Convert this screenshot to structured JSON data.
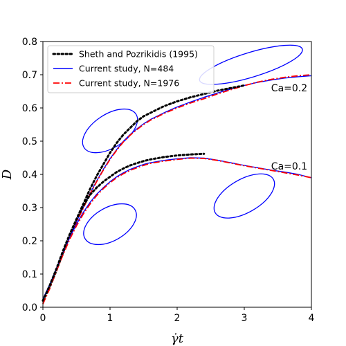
{
  "chart_data": {
    "type": "line",
    "xlabel": "γ̇t",
    "ylabel": "D",
    "xlim": [
      0,
      4
    ],
    "ylim": [
      0,
      0.8
    ],
    "xticks": [
      "0",
      "1",
      "2",
      "3",
      "4"
    ],
    "yticks": [
      "0.0",
      "0.1",
      "0.2",
      "0.3",
      "0.4",
      "0.5",
      "0.6",
      "0.7",
      "0.8"
    ],
    "grid": false,
    "legend_position": "top-left",
    "legend": [
      {
        "name": "Sheth and Pozrikidis (1995)",
        "style": "dotted",
        "color": "#000000"
      },
      {
        "name": "Current study, N=484",
        "style": "solid",
        "color": "#0000ff"
      },
      {
        "name": "Current study, N=1976",
        "style": "dashdot",
        "color": "#ff0000"
      }
    ],
    "annotations": [
      {
        "text": "Ca=0.2",
        "x": 3.4,
        "y": 0.66
      },
      {
        "text": "Ca=0.1",
        "x": 3.4,
        "y": 0.425
      }
    ],
    "groups": [
      {
        "ca": "Ca=0.2",
        "series": [
          {
            "ref": 0,
            "x": [
              0,
              0.1,
              0.2,
              0.3,
              0.4,
              0.5,
              0.6,
              0.7,
              0.8,
              0.9,
              1.0,
              1.1,
              1.2,
              1.3,
              1.4,
              1.5,
              1.6,
              1.8,
              2.0,
              2.2,
              2.4,
              2.6,
              2.8,
              3.0
            ],
            "y": [
              0.02,
              0.06,
              0.11,
              0.165,
              0.215,
              0.265,
              0.31,
              0.355,
              0.395,
              0.43,
              0.465,
              0.495,
              0.52,
              0.54,
              0.56,
              0.575,
              0.585,
              0.605,
              0.62,
              0.632,
              0.642,
              0.652,
              0.66,
              0.668
            ]
          },
          {
            "ref": 1,
            "x": [
              0,
              0.1,
              0.2,
              0.3,
              0.4,
              0.5,
              0.6,
              0.7,
              0.8,
              0.9,
              1.0,
              1.1,
              1.2,
              1.3,
              1.4,
              1.5,
              1.6,
              1.8,
              2.0,
              2.2,
              2.4,
              2.6,
              2.8,
              3.0,
              3.2,
              3.4,
              3.6,
              3.8,
              4.0
            ],
            "y": [
              0.025,
              0.065,
              0.115,
              0.165,
              0.212,
              0.258,
              0.3,
              0.342,
              0.38,
              0.415,
              0.447,
              0.475,
              0.5,
              0.52,
              0.537,
              0.552,
              0.565,
              0.585,
              0.603,
              0.618,
              0.632,
              0.645,
              0.657,
              0.668,
              0.677,
              0.684,
              0.69,
              0.694,
              0.697
            ]
          },
          {
            "ref": 2,
            "x": [
              0,
              0.1,
              0.2,
              0.3,
              0.4,
              0.5,
              0.6,
              0.7,
              0.8,
              0.9,
              1.0,
              1.1,
              1.2,
              1.3,
              1.4,
              1.5,
              1.6,
              1.8,
              2.0,
              2.2,
              2.4,
              2.6,
              2.8,
              3.0,
              3.2,
              3.4,
              3.6,
              3.8,
              4.0
            ],
            "y": [
              0.01,
              0.055,
              0.108,
              0.16,
              0.208,
              0.255,
              0.298,
              0.34,
              0.378,
              0.413,
              0.445,
              0.473,
              0.498,
              0.518,
              0.535,
              0.55,
              0.563,
              0.583,
              0.6,
              0.615,
              0.628,
              0.642,
              0.655,
              0.667,
              0.678,
              0.686,
              0.692,
              0.697,
              0.7
            ]
          }
        ]
      },
      {
        "ca": "Ca=0.1",
        "series": [
          {
            "ref": 0,
            "x": [
              0,
              0.1,
              0.2,
              0.3,
              0.4,
              0.5,
              0.6,
              0.7,
              0.8,
              0.9,
              1.0,
              1.1,
              1.2,
              1.3,
              1.4,
              1.5,
              1.6,
              1.8,
              2.0,
              2.2,
              2.4
            ],
            "y": [
              0.02,
              0.065,
              0.115,
              0.17,
              0.22,
              0.265,
              0.305,
              0.338,
              0.36,
              0.378,
              0.393,
              0.407,
              0.418,
              0.427,
              0.434,
              0.44,
              0.445,
              0.452,
              0.457,
              0.46,
              0.462
            ]
          },
          {
            "ref": 1,
            "x": [
              0,
              0.1,
              0.2,
              0.3,
              0.4,
              0.5,
              0.6,
              0.7,
              0.8,
              0.9,
              1.0,
              1.1,
              1.2,
              1.3,
              1.4,
              1.5,
              1.6,
              1.8,
              2.0,
              2.2,
              2.4,
              2.6,
              2.8,
              3.0,
              3.2,
              3.4,
              3.6,
              3.8,
              4.0
            ],
            "y": [
              0.025,
              0.068,
              0.115,
              0.165,
              0.21,
              0.25,
              0.285,
              0.315,
              0.34,
              0.36,
              0.378,
              0.393,
              0.405,
              0.415,
              0.423,
              0.43,
              0.435,
              0.442,
              0.447,
              0.45,
              0.449,
              0.443,
              0.435,
              0.427,
              0.42,
              0.413,
              0.407,
              0.4,
              0.39
            ]
          },
          {
            "ref": 2,
            "x": [
              0,
              0.1,
              0.2,
              0.3,
              0.4,
              0.5,
              0.6,
              0.7,
              0.8,
              0.9,
              1.0,
              1.1,
              1.2,
              1.3,
              1.4,
              1.5,
              1.6,
              1.8,
              2.0,
              2.2,
              2.4,
              2.6,
              2.8,
              3.0,
              3.2,
              3.4,
              3.6,
              3.8,
              4.0
            ],
            "y": [
              0.01,
              0.058,
              0.108,
              0.158,
              0.205,
              0.245,
              0.28,
              0.31,
              0.336,
              0.357,
              0.375,
              0.39,
              0.402,
              0.412,
              0.42,
              0.427,
              0.433,
              0.44,
              0.445,
              0.449,
              0.448,
              0.442,
              0.434,
              0.426,
              0.419,
              0.412,
              0.405,
              0.398,
              0.39
            ]
          }
        ]
      }
    ],
    "drop_shapes": [
      {
        "cx": 1.0,
        "cy": 0.531,
        "rx": 0.46,
        "ry": 0.05,
        "angle_deg": -33
      },
      {
        "cx": 1.0,
        "cy": 0.25,
        "rx": 0.43,
        "ry": 0.05,
        "angle_deg": -30
      },
      {
        "cx": 3.1,
        "cy": 0.73,
        "rx": 0.8,
        "ry": 0.037,
        "angle_deg": -17
      },
      {
        "cx": 3.0,
        "cy": 0.335,
        "rx": 0.5,
        "ry": 0.05,
        "angle_deg": -30
      }
    ]
  }
}
